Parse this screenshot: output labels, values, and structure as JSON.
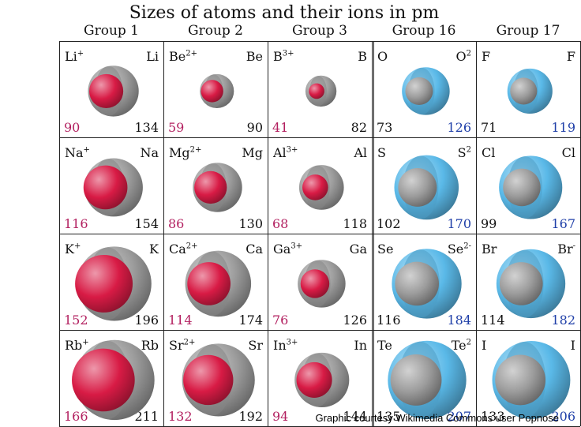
{
  "title": "Sizes of atoms and their ions in pm",
  "credit": "Graphic courtesy Wikimedia Commons user Popnose",
  "colors": {
    "cation": "#d81b45",
    "anion": "#5ab9e8",
    "atom": "#9c9c9c",
    "cation_value": "#b21f5f",
    "anion_value": "#1f3fa8",
    "neutral_value": "#111111"
  },
  "groups": [
    {
      "name": "Group 1",
      "kind": "cation",
      "rows": [
        {
          "ion": "Li",
          "ion_charge": "+",
          "atom": "Li",
          "ion_pm": "90",
          "atom_pm": "134"
        },
        {
          "ion": "Na",
          "ion_charge": "+",
          "atom": "Na",
          "ion_pm": "116",
          "atom_pm": "154"
        },
        {
          "ion": "K",
          "ion_charge": "+",
          "atom": "K",
          "ion_pm": "152",
          "atom_pm": "196"
        },
        {
          "ion": "Rb",
          "ion_charge": "+",
          "atom": "Rb",
          "ion_pm": "166",
          "atom_pm": "211"
        }
      ]
    },
    {
      "name": "Group 2",
      "kind": "cation",
      "rows": [
        {
          "ion": "Be",
          "ion_charge": "2+",
          "atom": "Be",
          "ion_pm": "59",
          "atom_pm": "90"
        },
        {
          "ion": "Mg",
          "ion_charge": "2+",
          "atom": "Mg",
          "ion_pm": "86",
          "atom_pm": "130"
        },
        {
          "ion": "Ca",
          "ion_charge": "2+",
          "atom": "Ca",
          "ion_pm": "114",
          "atom_pm": "174"
        },
        {
          "ion": "Sr",
          "ion_charge": "2+",
          "atom": "Sr",
          "ion_pm": "132",
          "atom_pm": "192"
        }
      ]
    },
    {
      "name": "Group 3",
      "kind": "cation",
      "rows": [
        {
          "ion": "B",
          "ion_charge": "3+",
          "atom": "B",
          "ion_pm": "41",
          "atom_pm": "82"
        },
        {
          "ion": "Al",
          "ion_charge": "3+",
          "atom": "Al",
          "ion_pm": "68",
          "atom_pm": "118"
        },
        {
          "ion": "Ga",
          "ion_charge": "3+",
          "atom": "Ga",
          "ion_pm": "76",
          "atom_pm": "126"
        },
        {
          "ion": "In",
          "ion_charge": "3+",
          "atom": "In",
          "ion_pm": "94",
          "atom_pm": "144"
        }
      ]
    },
    {
      "name": "Group 16",
      "kind": "anion",
      "rows": [
        {
          "atom": "O",
          "ion": "O",
          "ion_charge": "2",
          "atom_pm": "73",
          "ion_pm": "126"
        },
        {
          "atom": "S",
          "ion": "S",
          "ion_charge": "2",
          "atom_pm": "102",
          "ion_pm": "170"
        },
        {
          "atom": "Se",
          "ion": "Se",
          "ion_charge": "2-",
          "atom_pm": "116",
          "ion_pm": "184"
        },
        {
          "atom": "Te",
          "ion": "Te",
          "ion_charge": "2",
          "atom_pm": "135",
          "ion_pm": "207"
        }
      ]
    },
    {
      "name": "Group 17",
      "kind": "anion",
      "rows": [
        {
          "atom": "F",
          "ion": "F",
          "ion_charge": "",
          "atom_pm": "71",
          "ion_pm": "119"
        },
        {
          "atom": "Cl",
          "ion": "Cl",
          "ion_charge": "",
          "atom_pm": "99",
          "ion_pm": "167"
        },
        {
          "atom": "Br",
          "ion": "Br",
          "ion_charge": "-",
          "atom_pm": "114",
          "ion_pm": "182"
        },
        {
          "atom": "I",
          "ion": "I",
          "ion_charge": "",
          "atom_pm": "133",
          "ion_pm": "206"
        }
      ]
    }
  ]
}
